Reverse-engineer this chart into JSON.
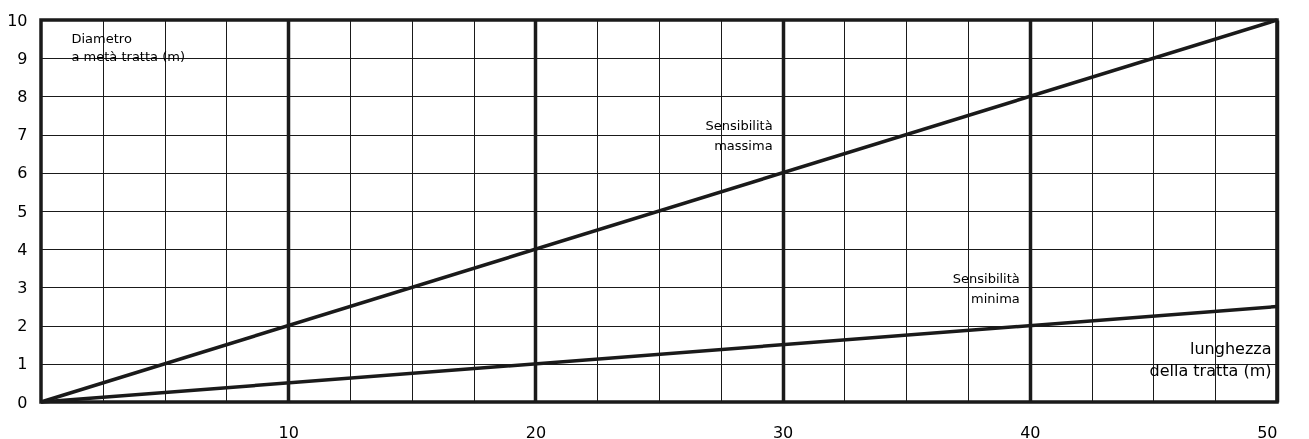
{
  "chart_data": {
    "type": "line",
    "xlabel": "lunghezza\ndella tratta (m)",
    "ylabel": "Diametro\na metà tratta (m)",
    "x": [
      0,
      50
    ],
    "series": [
      {
        "name": "Sensibilità massima",
        "color": "#1a1a1a",
        "values": [
          0,
          10
        ]
      },
      {
        "name": "Sensibilità minima",
        "color": "#1a1a1a",
        "values": [
          0,
          2.5
        ]
      }
    ],
    "xlim": [
      0,
      50
    ],
    "ylim": [
      0,
      10
    ],
    "xticks": [
      {
        "value": 0,
        "label": null
      },
      {
        "value": 2.5,
        "label": null
      },
      {
        "value": 5,
        "label": null
      },
      {
        "value": 7.5,
        "label": null
      },
      10,
      {
        "value": 12.5,
        "label": null
      },
      {
        "value": 15,
        "label": null
      },
      {
        "value": 17.5,
        "label": null
      },
      20,
      {
        "value": 22.5,
        "label": null
      },
      {
        "value": 25,
        "label": null
      },
      {
        "value": 27.5,
        "label": null
      },
      30,
      {
        "value": 32.5,
        "label": null
      },
      {
        "value": 35,
        "label": null
      },
      {
        "value": 37.5,
        "label": null
      },
      40,
      {
        "value": 42.5,
        "label": null
      },
      {
        "value": 45,
        "label": null
      },
      {
        "value": 47.5,
        "label": null
      },
      50
    ],
    "yticks": [
      0,
      1,
      2,
      3,
      4,
      5,
      6,
      7,
      8,
      9,
      10
    ],
    "grid": true,
    "marker": "none",
    "line_style": "solid"
  }
}
